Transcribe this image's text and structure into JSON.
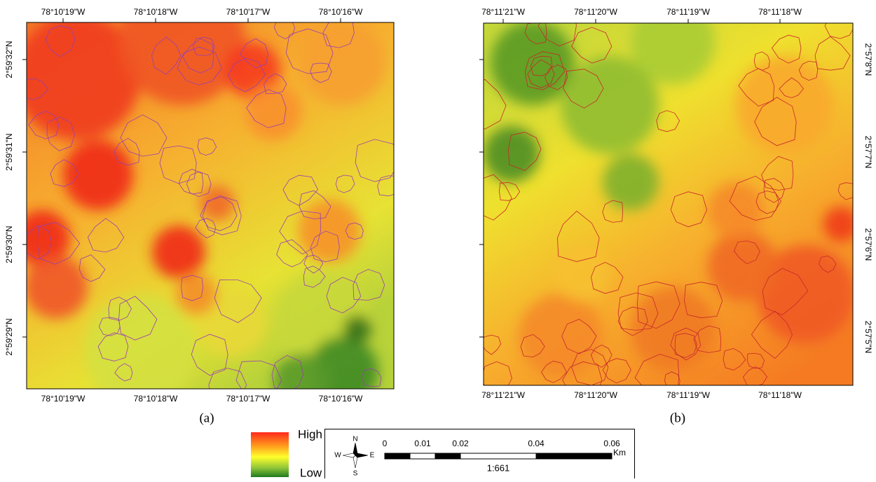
{
  "panel_a": {
    "top_labels": [
      "78°10'19\"W",
      "78°10'18\"W",
      "78°10'17\"W",
      "78°10'16\"W"
    ],
    "bottom_labels": [
      "78°10'19\"W",
      "78°10'18\"W",
      "78°10'17\"W",
      "78°10'16\"W"
    ],
    "left_labels": [
      "2°59'32\"N",
      "2°59'31\"N",
      "2°59'30\"N",
      "2°59'29\"N"
    ],
    "caption": "(a)"
  },
  "panel_b": {
    "top_labels": [
      "78°11'21\"W",
      "78°11'20\"W",
      "78°11'19\"W",
      "78°11'18\"W"
    ],
    "bottom_labels": [
      "78°11'21\"W",
      "78°11'20\"W",
      "78°11'19\"W",
      "78°11'18\"W"
    ],
    "right_labels": [
      "2°57'8\"N",
      "2°57'7\"N",
      "2°57'6\"N",
      "2°57'5\"N"
    ],
    "caption": "(b)"
  },
  "legend": {
    "high": "High",
    "low": "Low"
  },
  "compass": {
    "n": "N",
    "s": "S",
    "e": "E",
    "w": "W"
  },
  "scale_bar": {
    "labels": [
      "0",
      "0.01",
      "0.02",
      "0.04",
      "0.06"
    ],
    "unit": "Km",
    "ratio": "1:661"
  }
}
